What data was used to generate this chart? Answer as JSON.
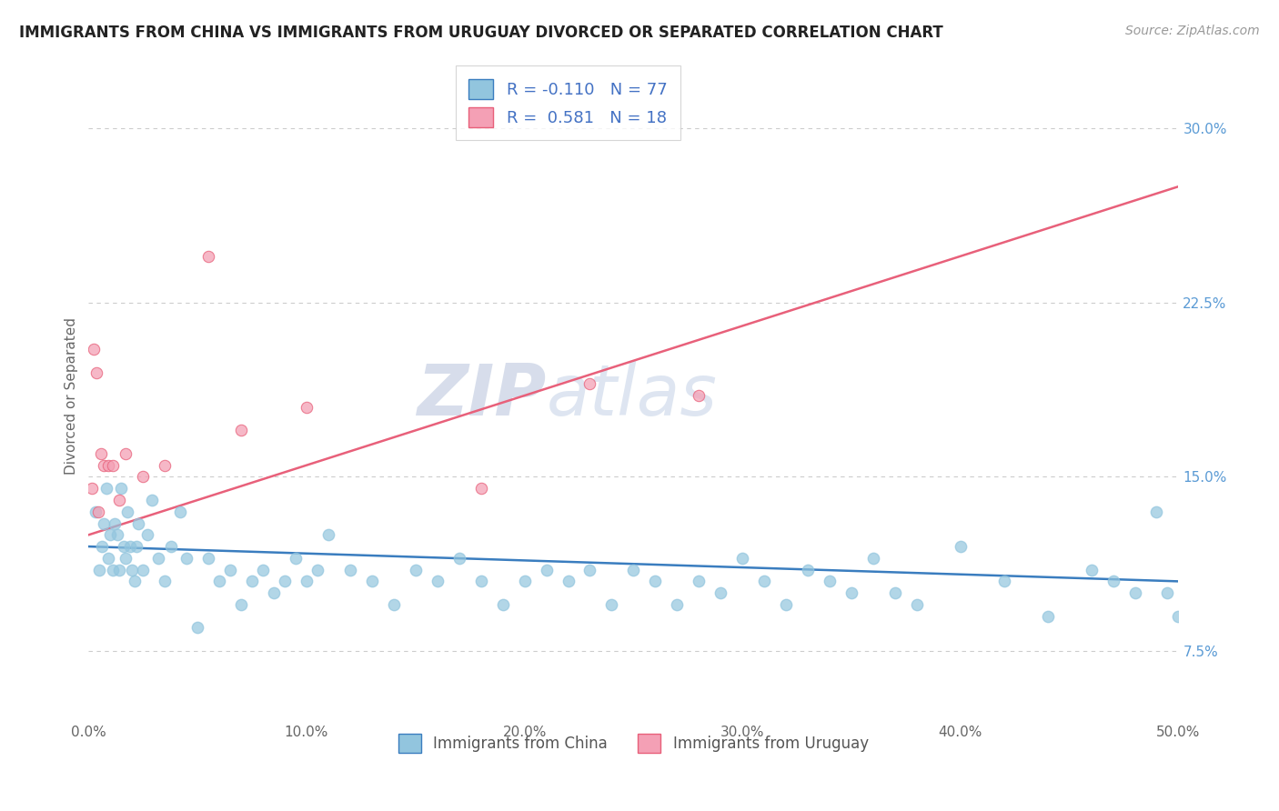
{
  "title": "IMMIGRANTS FROM CHINA VS IMMIGRANTS FROM URUGUAY DIVORCED OR SEPARATED CORRELATION CHART",
  "source": "Source: ZipAtlas.com",
  "ylabel": "Divorced or Separated",
  "legend_label_1": "Immigrants from China",
  "legend_label_2": "Immigrants from Uruguay",
  "r_china": -0.11,
  "n_china": 77,
  "r_uruguay": 0.581,
  "n_uruguay": 18,
  "color_china": "#92c5de",
  "color_uruguay": "#f4a0b5",
  "trendline_china": "#3a7dbf",
  "trendline_uruguay": "#e8607a",
  "xmin": 0.0,
  "xmax": 50.0,
  "ymin": 4.5,
  "ymax": 32.5,
  "yticks": [
    7.5,
    15.0,
    22.5,
    30.0
  ],
  "xticks": [
    0.0,
    10.0,
    20.0,
    30.0,
    40.0,
    50.0
  ],
  "watermark_zip": "ZIP",
  "watermark_atlas": "atlas",
  "china_x": [
    0.3,
    0.5,
    0.6,
    0.7,
    0.8,
    0.9,
    1.0,
    1.1,
    1.2,
    1.3,
    1.4,
    1.5,
    1.6,
    1.7,
    1.8,
    1.9,
    2.0,
    2.1,
    2.2,
    2.3,
    2.5,
    2.7,
    2.9,
    3.2,
    3.5,
    3.8,
    4.2,
    4.5,
    5.0,
    5.5,
    6.0,
    6.5,
    7.0,
    7.5,
    8.0,
    8.5,
    9.0,
    9.5,
    10.0,
    10.5,
    11.0,
    12.0,
    13.0,
    14.0,
    15.0,
    16.0,
    17.0,
    18.0,
    19.0,
    20.0,
    21.0,
    22.0,
    23.0,
    24.0,
    25.0,
    26.0,
    27.0,
    28.0,
    29.0,
    30.0,
    31.0,
    32.0,
    33.0,
    34.0,
    35.0,
    36.0,
    37.0,
    38.0,
    40.0,
    42.0,
    44.0,
    46.0,
    47.0,
    48.0,
    49.0,
    49.5,
    50.0
  ],
  "china_y": [
    13.5,
    11.0,
    12.0,
    13.0,
    14.5,
    11.5,
    12.5,
    11.0,
    13.0,
    12.5,
    11.0,
    14.5,
    12.0,
    11.5,
    13.5,
    12.0,
    11.0,
    10.5,
    12.0,
    13.0,
    11.0,
    12.5,
    14.0,
    11.5,
    10.5,
    12.0,
    13.5,
    11.5,
    8.5,
    11.5,
    10.5,
    11.0,
    9.5,
    10.5,
    11.0,
    10.0,
    10.5,
    11.5,
    10.5,
    11.0,
    12.5,
    11.0,
    10.5,
    9.5,
    11.0,
    10.5,
    11.5,
    10.5,
    9.5,
    10.5,
    11.0,
    10.5,
    11.0,
    9.5,
    11.0,
    10.5,
    9.5,
    10.5,
    10.0,
    11.5,
    10.5,
    9.5,
    11.0,
    10.5,
    10.0,
    11.5,
    10.0,
    9.5,
    12.0,
    10.5,
    9.0,
    11.0,
    10.5,
    10.0,
    13.5,
    10.0,
    9.0
  ],
  "uruguay_x": [
    0.15,
    0.25,
    0.35,
    0.45,
    0.55,
    0.7,
    0.9,
    1.1,
    1.4,
    1.7,
    2.5,
    3.5,
    5.5,
    7.0,
    10.0,
    18.0,
    23.0,
    28.0
  ],
  "uruguay_y": [
    14.5,
    20.5,
    19.5,
    13.5,
    16.0,
    15.5,
    15.5,
    15.5,
    14.0,
    16.0,
    15.0,
    15.5,
    24.5,
    17.0,
    18.0,
    14.5,
    19.0,
    18.5
  ],
  "china_trend_x0": 0.0,
  "china_trend_x1": 50.0,
  "china_trend_y0": 12.0,
  "china_trend_y1": 10.5,
  "uruguay_trend_x0": 0.0,
  "uruguay_trend_x1": 50.0,
  "uruguay_trend_y0": 12.5,
  "uruguay_trend_y1": 27.5
}
